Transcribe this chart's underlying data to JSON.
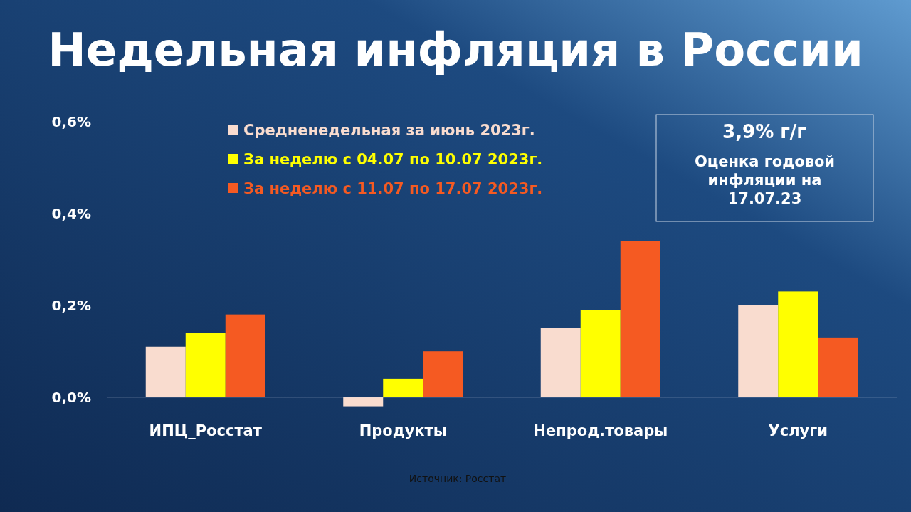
{
  "chart_data": {
    "type": "bar",
    "title": "Недельная инфляция в России",
    "categories": [
      "ИПЦ_Росстат",
      "Продукты",
      "Непрод.товары",
      "Услуги"
    ],
    "series": [
      {
        "name": "Средненедельная за июнь 2023г.",
        "color": "#f9dccf",
        "values": [
          0.11,
          -0.02,
          0.15,
          0.2
        ]
      },
      {
        "name": "За неделю с 04.07 по 10.07 2023г.",
        "color": "#ffff00",
        "values": [
          0.14,
          0.04,
          0.19,
          0.23
        ]
      },
      {
        "name": "За неделю с 11.07 по 17.07 2023г.",
        "color": "#f55a22",
        "values": [
          0.18,
          0.1,
          0.34,
          0.13
        ]
      }
    ],
    "ylim": [
      -0.03,
      0.62
    ],
    "yticks": [
      {
        "value": 0,
        "label": "0,0%"
      },
      {
        "value": 0.2,
        "label": "0,2%"
      },
      {
        "value": 0.4,
        "label": "0,4%"
      },
      {
        "value": 0.6,
        "label": "0,6%"
      }
    ],
    "legend": "top",
    "annotations": [
      "3,9% г/г",
      "Оценка годовой инфляции на 17.07.23",
      "Источник: Росстат"
    ]
  }
}
